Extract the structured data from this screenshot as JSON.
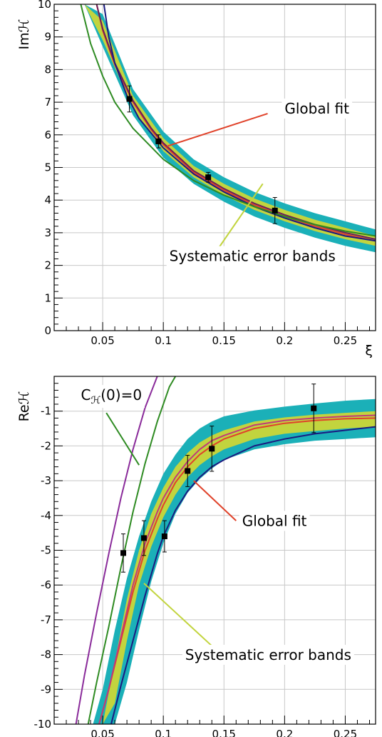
{
  "chart_data": [
    {
      "type": "line",
      "panel": "top",
      "xlabel": "ξ",
      "ylabel": "Imℋ",
      "xlim": [
        0.01,
        0.275
      ],
      "ylim": [
        0,
        10
      ],
      "xticks": [
        0.05,
        0.1,
        0.15,
        0.2,
        0.25
      ],
      "xtick_labels": [
        "0.05",
        "0.1",
        "0.15",
        "0.2",
        "0.25"
      ],
      "yticks": [
        0,
        1,
        2,
        3,
        4,
        5,
        6,
        7,
        8,
        9,
        10
      ],
      "ytick_labels": [
        "0",
        "1",
        "2",
        "3",
        "4",
        "5",
        "6",
        "7",
        "8",
        "9",
        "10"
      ],
      "grid": true,
      "colors": {
        "outer_band": "#1bb0b8",
        "inner_band": "#c2d43e",
        "fit": "#e0422a",
        "alt_fit": "#6a1f5a",
        "navy": "#1a1a80",
        "green": "#2e8b22"
      },
      "bands": [
        {
          "role": "outer",
          "x": [
            0.035,
            0.05,
            0.075,
            0.1,
            0.125,
            0.15,
            0.175,
            0.2,
            0.225,
            0.25,
            0.275
          ],
          "lower": [
            10.0,
            8.7,
            6.6,
            5.3,
            4.5,
            3.95,
            3.5,
            3.15,
            2.85,
            2.6,
            2.4
          ],
          "upper": [
            10.0,
            9.7,
            7.4,
            6.1,
            5.25,
            4.7,
            4.25,
            3.9,
            3.6,
            3.35,
            3.1
          ]
        },
        {
          "role": "inner",
          "x": [
            0.035,
            0.05,
            0.075,
            0.1,
            0.125,
            0.15,
            0.175,
            0.2,
            0.225,
            0.25,
            0.275
          ],
          "lower": [
            10.0,
            8.9,
            6.8,
            5.5,
            4.7,
            4.15,
            3.7,
            3.35,
            3.05,
            2.8,
            2.6
          ],
          "upper": [
            10.0,
            9.5,
            7.2,
            5.9,
            5.05,
            4.5,
            4.05,
            3.7,
            3.4,
            3.15,
            2.9
          ]
        }
      ],
      "series": [
        {
          "role": "fit",
          "x": [
            0.045,
            0.05,
            0.06,
            0.075,
            0.09,
            0.1,
            0.125,
            0.15,
            0.175,
            0.2,
            0.225,
            0.25,
            0.275
          ],
          "y": [
            10.0,
            9.2,
            8.15,
            7.0,
            6.15,
            5.7,
            4.85,
            4.3,
            3.85,
            3.5,
            3.2,
            2.95,
            2.75
          ]
        },
        {
          "role": "alt_fit",
          "x": [
            0.045,
            0.05,
            0.06,
            0.075,
            0.09,
            0.1,
            0.125,
            0.15,
            0.175,
            0.2,
            0.225,
            0.25,
            0.275
          ],
          "y": [
            10.0,
            9.25,
            8.2,
            7.05,
            6.2,
            5.75,
            4.9,
            4.35,
            3.9,
            3.55,
            3.25,
            3.0,
            2.8
          ]
        },
        {
          "role": "navy",
          "x": [
            0.051,
            0.055,
            0.06,
            0.07,
            0.08,
            0.1,
            0.125,
            0.15,
            0.175,
            0.2,
            0.225,
            0.25,
            0.275
          ],
          "y": [
            10.0,
            9.0,
            8.2,
            7.2,
            6.5,
            5.6,
            4.8,
            4.25,
            3.8,
            3.45,
            3.15,
            2.9,
            2.75
          ]
        },
        {
          "role": "green",
          "x": [
            0.032,
            0.04,
            0.05,
            0.06,
            0.075,
            0.1,
            0.125,
            0.15,
            0.175,
            0.2,
            0.225,
            0.25,
            0.275
          ],
          "y": [
            10.0,
            8.8,
            7.8,
            7.0,
            6.2,
            5.25,
            4.6,
            4.15,
            3.8,
            3.5,
            3.25,
            3.05,
            2.9
          ]
        }
      ],
      "points": [
        {
          "x": 0.072,
          "y": 7.1,
          "err": 0.4
        },
        {
          "x": 0.096,
          "y": 5.8,
          "err": 0.2
        },
        {
          "x": 0.137,
          "y": 4.7,
          "err": 0.15
        },
        {
          "x": 0.192,
          "y": 3.68,
          "err": 0.4
        }
      ],
      "annotations": [
        {
          "id": "global_fit",
          "text": "Global fit",
          "color": "#e0422a",
          "text_at": [
            0.2,
            6.65
          ],
          "arrow_from": [
            0.186,
            6.65
          ],
          "arrow_to": [
            0.103,
            5.65
          ]
        },
        {
          "id": "sys_bands",
          "text": "Systematic error bands",
          "color": "#c2d43e",
          "text_at": [
            0.105,
            2.13
          ],
          "arrow_from": [
            0.145,
            2.5
          ],
          "arrow_to": [
            0.182,
            4.5
          ]
        }
      ]
    },
    {
      "type": "line",
      "panel": "bottom",
      "xlabel": "ξ",
      "ylabel": "Reℋ",
      "xlim": [
        0.01,
        0.275
      ],
      "ylim": [
        -10,
        0
      ],
      "xticks": [
        0.05,
        0.1,
        0.15,
        0.2,
        0.25
      ],
      "xtick_labels": [
        "0.05",
        "0.1",
        "0.15",
        "0.2",
        "0.25"
      ],
      "yticks": [
        -10,
        -9,
        -8,
        -7,
        -6,
        -5,
        -4,
        -3,
        -2,
        -1
      ],
      "ytick_labels": [
        "-10",
        "-9",
        "-8",
        "-7",
        "-6",
        "-5",
        "-4",
        "-3",
        "-2",
        "-1"
      ],
      "grid": true,
      "colors": {
        "outer_band": "#1bb0b8",
        "inner_band": "#c2d43e",
        "fit": "#e0422a",
        "magenta": "#c03a7a",
        "navy": "#1a1a80",
        "purple": "#8a2b9a",
        "green": "#2e8b22"
      },
      "bands": [
        {
          "role": "outer",
          "x": [
            0.042,
            0.05,
            0.06,
            0.07,
            0.08,
            0.09,
            0.1,
            0.11,
            0.12,
            0.13,
            0.14,
            0.15,
            0.175,
            0.2,
            0.225,
            0.25,
            0.275
          ],
          "lower": [
            -10.0,
            -10.0,
            -10.0,
            -8.8,
            -7.3,
            -5.9,
            -4.8,
            -3.95,
            -3.35,
            -2.95,
            -2.65,
            -2.4,
            -2.1,
            -1.95,
            -1.85,
            -1.8,
            -1.75
          ],
          "upper": [
            -10.0,
            -9.0,
            -7.3,
            -5.8,
            -4.6,
            -3.6,
            -2.8,
            -2.25,
            -1.8,
            -1.5,
            -1.3,
            -1.15,
            -0.98,
            -0.87,
            -0.78,
            -0.7,
            -0.65
          ]
        },
        {
          "role": "inner",
          "x": [
            0.05,
            0.06,
            0.07,
            0.08,
            0.09,
            0.1,
            0.11,
            0.12,
            0.13,
            0.14,
            0.15,
            0.175,
            0.2,
            0.225,
            0.25,
            0.275
          ],
          "lower": [
            -10.0,
            -9.4,
            -7.6,
            -6.0,
            -4.9,
            -4.05,
            -3.4,
            -2.9,
            -2.55,
            -2.3,
            -2.1,
            -1.8,
            -1.65,
            -1.57,
            -1.5,
            -1.45
          ],
          "upper": [
            -10.0,
            -8.2,
            -6.4,
            -5.0,
            -3.95,
            -3.2,
            -2.6,
            -2.2,
            -1.9,
            -1.7,
            -1.55,
            -1.3,
            -1.18,
            -1.1,
            -1.05,
            -1.0
          ]
        }
      ],
      "series": [
        {
          "role": "fit",
          "x": [
            0.047,
            0.055,
            0.065,
            0.075,
            0.085,
            0.095,
            0.1,
            0.11,
            0.12,
            0.13,
            0.14,
            0.15,
            0.175,
            0.2,
            0.225,
            0.25,
            0.275
          ],
          "y": [
            -10.0,
            -9.0,
            -7.6,
            -6.2,
            -5.0,
            -4.1,
            -3.7,
            -3.05,
            -2.6,
            -2.25,
            -2.0,
            -1.8,
            -1.5,
            -1.35,
            -1.27,
            -1.22,
            -1.2
          ]
        },
        {
          "role": "magenta",
          "x": [
            0.047,
            0.055,
            0.065,
            0.075,
            0.085,
            0.095,
            0.1,
            0.11,
            0.12,
            0.13,
            0.14,
            0.15,
            0.175,
            0.2,
            0.225,
            0.25,
            0.275
          ],
          "y": [
            -10.0,
            -9.0,
            -7.5,
            -6.0,
            -4.8,
            -3.9,
            -3.5,
            -2.9,
            -2.45,
            -2.1,
            -1.85,
            -1.7,
            -1.4,
            -1.27,
            -1.2,
            -1.15,
            -1.12
          ]
        },
        {
          "role": "navy",
          "x": [
            0.057,
            0.065,
            0.075,
            0.085,
            0.095,
            0.1,
            0.11,
            0.12,
            0.13,
            0.14,
            0.15,
            0.175,
            0.2,
            0.225,
            0.25,
            0.275
          ],
          "y": [
            -10.0,
            -8.9,
            -7.6,
            -6.3,
            -5.1,
            -4.6,
            -3.85,
            -3.3,
            -2.9,
            -2.6,
            -2.4,
            -2.0,
            -1.8,
            -1.65,
            -1.55,
            -1.45
          ]
        },
        {
          "role": "purple",
          "x": [
            0.028,
            0.035,
            0.045,
            0.055,
            0.065,
            0.075,
            0.085,
            0.095,
            0.1
          ],
          "y": [
            -10.0,
            -8.6,
            -6.8,
            -5.1,
            -3.5,
            -2.1,
            -0.9,
            0.0,
            0.3
          ]
        },
        {
          "role": "green",
          "x": [
            0.038,
            0.045,
            0.055,
            0.065,
            0.075,
            0.085,
            0.095,
            0.105,
            0.115
          ],
          "y": [
            -10.0,
            -8.8,
            -7.2,
            -5.5,
            -3.9,
            -2.5,
            -1.3,
            -0.3,
            0.3
          ]
        }
      ],
      "points": [
        {
          "x": 0.067,
          "y": -5.08,
          "err": 0.55
        },
        {
          "x": 0.084,
          "y": -4.65,
          "err": 0.5
        },
        {
          "x": 0.101,
          "y": -4.6,
          "err": 0.45
        },
        {
          "x": 0.12,
          "y": -2.72,
          "err": 0.45
        },
        {
          "x": 0.14,
          "y": -2.08,
          "err": 0.65
        },
        {
          "x": 0.224,
          "y": -0.92,
          "err": 0.7
        }
      ],
      "annotations": [
        {
          "id": "c_zero",
          "text": "C",
          "sub": "ℋ",
          "tail": "(0)=0",
          "color": "#2e8b22",
          "text_at": [
            0.032,
            -0.68
          ],
          "arrow_from": [
            0.053,
            -1.05
          ],
          "arrow_to": [
            0.08,
            -2.55
          ]
        },
        {
          "id": "global_fit",
          "text": "Global fit",
          "color": "#e0422a",
          "text_at": [
            0.165,
            -4.3
          ],
          "arrow_from": [
            0.16,
            -4.15
          ],
          "arrow_to": [
            0.125,
            -3.0
          ]
        },
        {
          "id": "sys_bands",
          "text": "Systematic error bands",
          "color": "#c2d43e",
          "text_at": [
            0.118,
            -8.15
          ],
          "arrow_from": [
            0.14,
            -7.75
          ],
          "arrow_to": [
            0.084,
            -5.95
          ]
        }
      ]
    }
  ]
}
